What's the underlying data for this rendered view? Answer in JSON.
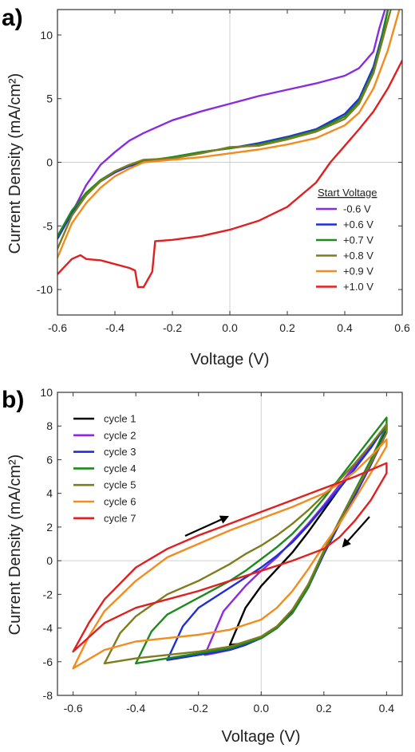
{
  "chart_data": [
    {
      "panel": "a)",
      "type": "line",
      "xlabel": "Voltage (V)",
      "ylabel": "Current Density (mA/cm²)",
      "xlim": [
        -0.6,
        0.6
      ],
      "ylim": [
        -12,
        12
      ],
      "xticks": [
        -0.6,
        -0.4,
        -0.2,
        0.0,
        0.2,
        0.4,
        0.6
      ],
      "xtick_labels": [
        "-0.6",
        "-0.4",
        "-0.2",
        "0.0",
        "0.2",
        "0.4",
        "0.6"
      ],
      "yticks": [
        -10,
        -5,
        0,
        5,
        10
      ],
      "ytick_labels": [
        "-10",
        "-5",
        "0",
        "5",
        "10"
      ],
      "legend_title": "Start Voltage",
      "legend_position": "lower-right",
      "series": [
        {
          "name": "-0.6 V",
          "color": "#8a2be2",
          "x": [
            -0.6,
            -0.55,
            -0.5,
            -0.45,
            -0.4,
            -0.35,
            -0.3,
            -0.2,
            -0.1,
            0.0,
            0.1,
            0.2,
            0.3,
            0.4,
            0.45,
            0.5,
            0.52,
            0.54
          ],
          "y": [
            -6.0,
            -4.0,
            -1.8,
            -0.2,
            0.8,
            1.7,
            2.3,
            3.3,
            4.0,
            4.6,
            5.2,
            5.7,
            6.2,
            6.8,
            7.4,
            8.7,
            10.5,
            12.0
          ]
        },
        {
          "name": "+0.6 V",
          "color": "#1f2fd6",
          "x": [
            -0.6,
            -0.55,
            -0.5,
            -0.45,
            -0.4,
            -0.35,
            -0.3,
            -0.2,
            -0.1,
            0.0,
            0.1,
            0.2,
            0.3,
            0.4,
            0.45,
            0.5,
            0.53,
            0.55
          ],
          "y": [
            -6.0,
            -4.0,
            -2.5,
            -1.5,
            -0.8,
            -0.3,
            0.0,
            0.4,
            0.8,
            1.1,
            1.5,
            2.0,
            2.6,
            3.8,
            5.0,
            7.5,
            10.0,
            12.0
          ]
        },
        {
          "name": "+0.7 V",
          "color": "#1e8a1e",
          "x": [
            -0.6,
            -0.55,
            -0.5,
            -0.45,
            -0.4,
            -0.35,
            -0.3,
            -0.2,
            -0.1,
            0.0,
            0.1,
            0.2,
            0.3,
            0.4,
            0.45,
            0.5,
            0.53,
            0.55
          ],
          "y": [
            -5.8,
            -3.8,
            -2.4,
            -1.4,
            -0.7,
            -0.2,
            0.1,
            0.4,
            0.8,
            1.1,
            1.4,
            1.9,
            2.5,
            3.6,
            4.8,
            7.2,
            9.8,
            12.0
          ]
        },
        {
          "name": "+0.8 V",
          "color": "#7d7d1e",
          "x": [
            -0.6,
            -0.55,
            -0.5,
            -0.45,
            -0.4,
            -0.35,
            -0.3,
            -0.2,
            -0.1,
            0.0,
            0.1,
            0.2,
            0.3,
            0.4,
            0.45,
            0.5,
            0.53,
            0.56
          ],
          "y": [
            -6.8,
            -4.2,
            -2.6,
            -1.5,
            -0.7,
            -0.2,
            0.2,
            0.3,
            0.7,
            1.2,
            1.3,
            1.8,
            2.4,
            3.4,
            4.6,
            7.0,
            9.5,
            12.0
          ]
        },
        {
          "name": "+0.9 V",
          "color": "#f28c1e",
          "x": [
            -0.6,
            -0.55,
            -0.5,
            -0.45,
            -0.4,
            -0.35,
            -0.3,
            -0.2,
            -0.1,
            0.0,
            0.1,
            0.2,
            0.3,
            0.4,
            0.45,
            0.5,
            0.55,
            0.59
          ],
          "y": [
            -7.5,
            -4.8,
            -3.2,
            -2.0,
            -1.1,
            -0.5,
            0.0,
            0.2,
            0.4,
            0.7,
            1.0,
            1.4,
            1.9,
            2.9,
            3.9,
            5.8,
            8.8,
            12.0
          ]
        },
        {
          "name": "+1.0 V",
          "color": "#e02020",
          "x": [
            -0.6,
            -0.55,
            -0.52,
            -0.5,
            -0.45,
            -0.4,
            -0.35,
            -0.33,
            -0.32,
            -0.3,
            -0.27,
            -0.26,
            -0.2,
            -0.1,
            0.0,
            0.1,
            0.2,
            0.3,
            0.35,
            0.4,
            0.45,
            0.5,
            0.55,
            0.6
          ],
          "y": [
            -8.8,
            -7.6,
            -7.3,
            -7.6,
            -7.7,
            -8.0,
            -8.3,
            -8.5,
            -9.8,
            -9.8,
            -8.6,
            -6.2,
            -6.1,
            -5.8,
            -5.3,
            -4.6,
            -3.5,
            -1.6,
            0.0,
            1.3,
            2.6,
            4.0,
            5.8,
            8.0
          ]
        }
      ]
    },
    {
      "panel": "b)",
      "type": "line",
      "xlabel": "Voltage (V)",
      "ylabel": "Current Density (mA/cm²)",
      "xlim": [
        -0.65,
        0.45
      ],
      "ylim": [
        -8,
        10
      ],
      "xticks": [
        -0.6,
        -0.4,
        -0.2,
        0.0,
        0.2,
        0.4
      ],
      "xtick_labels": [
        "-0.6",
        "-0.4",
        "-0.2",
        "0.0",
        "0.2",
        "0.4"
      ],
      "yticks": [
        -8,
        -6,
        -4,
        -2,
        0,
        2,
        4,
        6,
        8,
        10
      ],
      "ytick_labels": [
        "-8",
        "-6",
        "-4",
        "-2",
        "0",
        "2",
        "4",
        "6",
        "8",
        "10"
      ],
      "legend_position": "top-left",
      "annotations": [
        "arrow up-right near (-0.2, 2)",
        "arrow down-left near (0.22, 0.5)"
      ],
      "series": [
        {
          "name": "cycle 1",
          "color": "#000000",
          "x": [
            -0.1,
            -0.05,
            0.0,
            0.05,
            0.1,
            0.15,
            0.2,
            0.25,
            0.3,
            0.35,
            0.4,
            0.4,
            0.35,
            0.3,
            0.25,
            0.2,
            0.15,
            0.1,
            0.05,
            0.0,
            -0.05,
            -0.1
          ],
          "y": [
            -5.0,
            -2.8,
            -1.5,
            -0.5,
            0.5,
            1.7,
            3.0,
            4.3,
            5.5,
            6.8,
            8.1,
            7.8,
            5.8,
            4.0,
            2.3,
            0.5,
            -1.5,
            -3.0,
            -4.0,
            -4.6,
            -4.9,
            -5.0
          ]
        },
        {
          "name": "cycle 2",
          "color": "#8a2be2",
          "x": [
            -0.18,
            -0.12,
            -0.05,
            0.0,
            0.05,
            0.1,
            0.15,
            0.2,
            0.25,
            0.3,
            0.35,
            0.4,
            0.4,
            0.35,
            0.3,
            0.25,
            0.2,
            0.15,
            0.1,
            0.05,
            0.0,
            -0.05,
            -0.1,
            -0.15,
            -0.18
          ],
          "y": [
            -5.6,
            -3.0,
            -1.5,
            -0.6,
            0.2,
            1.2,
            2.2,
            3.3,
            4.5,
            5.7,
            6.8,
            8.0,
            7.6,
            5.7,
            3.9,
            2.2,
            0.4,
            -1.6,
            -3.1,
            -4.0,
            -4.6,
            -5.0,
            -5.3,
            -5.5,
            -5.6
          ]
        },
        {
          "name": "cycle 3",
          "color": "#1f2fd6",
          "x": [
            -0.3,
            -0.25,
            -0.2,
            -0.1,
            -0.05,
            0.0,
            0.05,
            0.1,
            0.15,
            0.2,
            0.25,
            0.3,
            0.35,
            0.4,
            0.4,
            0.35,
            0.3,
            0.25,
            0.2,
            0.15,
            0.1,
            0.05,
            0.0,
            -0.05,
            -0.1,
            -0.2,
            -0.3
          ],
          "y": [
            -5.9,
            -3.9,
            -2.8,
            -1.6,
            -1.0,
            -0.4,
            0.3,
            1.1,
            2.1,
            3.2,
            4.3,
            5.5,
            6.7,
            8.1,
            7.7,
            5.7,
            3.9,
            2.2,
            0.4,
            -1.6,
            -3.1,
            -4.0,
            -4.6,
            -5.0,
            -5.3,
            -5.6,
            -5.9
          ]
        },
        {
          "name": "cycle 4",
          "color": "#1e8a1e",
          "x": [
            -0.4,
            -0.35,
            -0.3,
            -0.2,
            -0.1,
            -0.05,
            0.0,
            0.05,
            0.1,
            0.15,
            0.2,
            0.25,
            0.3,
            0.35,
            0.4,
            0.4,
            0.35,
            0.3,
            0.25,
            0.2,
            0.15,
            0.1,
            0.05,
            0.0,
            -0.1,
            -0.2,
            -0.3,
            -0.4
          ],
          "y": [
            -6.1,
            -4.2,
            -3.2,
            -2.2,
            -1.2,
            -0.6,
            0.1,
            0.8,
            1.6,
            2.6,
            3.7,
            4.9,
            6.1,
            7.3,
            8.5,
            8.0,
            6.0,
            4.2,
            2.4,
            0.5,
            -1.6,
            -3.1,
            -4.0,
            -4.6,
            -5.2,
            -5.5,
            -5.8,
            -6.1
          ]
        },
        {
          "name": "cycle 5",
          "color": "#7d7d1e",
          "x": [
            -0.5,
            -0.45,
            -0.4,
            -0.3,
            -0.2,
            -0.1,
            -0.05,
            0.0,
            0.05,
            0.1,
            0.15,
            0.2,
            0.25,
            0.3,
            0.35,
            0.4,
            0.4,
            0.35,
            0.3,
            0.25,
            0.2,
            0.15,
            0.1,
            0.05,
            0.0,
            -0.1,
            -0.2,
            -0.3,
            -0.4,
            -0.5
          ],
          "y": [
            -6.1,
            -4.3,
            -3.3,
            -2.0,
            -1.2,
            -0.2,
            0.4,
            0.9,
            1.5,
            2.2,
            3.0,
            3.9,
            4.8,
            5.8,
            6.9,
            8.1,
            7.6,
            5.8,
            4.1,
            2.4,
            0.6,
            -1.4,
            -2.9,
            -3.9,
            -4.5,
            -5.1,
            -5.4,
            -5.6,
            -5.8,
            -6.1
          ]
        },
        {
          "name": "cycle 6",
          "color": "#f28c1e",
          "x": [
            -0.6,
            -0.55,
            -0.5,
            -0.4,
            -0.3,
            -0.2,
            -0.1,
            0.0,
            0.1,
            0.2,
            0.25,
            0.3,
            0.35,
            0.4,
            0.4,
            0.35,
            0.3,
            0.25,
            0.2,
            0.15,
            0.1,
            0.05,
            0.0,
            -0.1,
            -0.2,
            -0.3,
            -0.4,
            -0.5,
            -0.6
          ],
          "y": [
            -6.4,
            -4.5,
            -3.0,
            -1.2,
            0.2,
            1.0,
            1.8,
            2.5,
            3.2,
            4.0,
            4.6,
            5.3,
            6.2,
            7.2,
            6.8,
            5.2,
            3.7,
            2.2,
            0.9,
            -0.5,
            -1.8,
            -2.8,
            -3.5,
            -4.1,
            -4.4,
            -4.6,
            -4.8,
            -5.3,
            -6.4
          ]
        },
        {
          "name": "cycle 7",
          "color": "#e02020",
          "x": [
            -0.6,
            -0.55,
            -0.5,
            -0.4,
            -0.3,
            -0.2,
            -0.1,
            0.0,
            0.1,
            0.2,
            0.3,
            0.4,
            0.4,
            0.35,
            0.3,
            0.25,
            0.2,
            0.1,
            0.0,
            -0.1,
            -0.2,
            -0.3,
            -0.4,
            -0.5,
            -0.6
          ],
          "y": [
            -5.4,
            -3.7,
            -2.3,
            -0.4,
            0.7,
            1.5,
            2.2,
            2.9,
            3.6,
            4.3,
            5.0,
            5.8,
            5.2,
            3.6,
            2.4,
            1.4,
            0.7,
            0.0,
            -0.6,
            -1.2,
            -1.8,
            -2.3,
            -2.8,
            -3.7,
            -5.4
          ]
        }
      ]
    }
  ]
}
